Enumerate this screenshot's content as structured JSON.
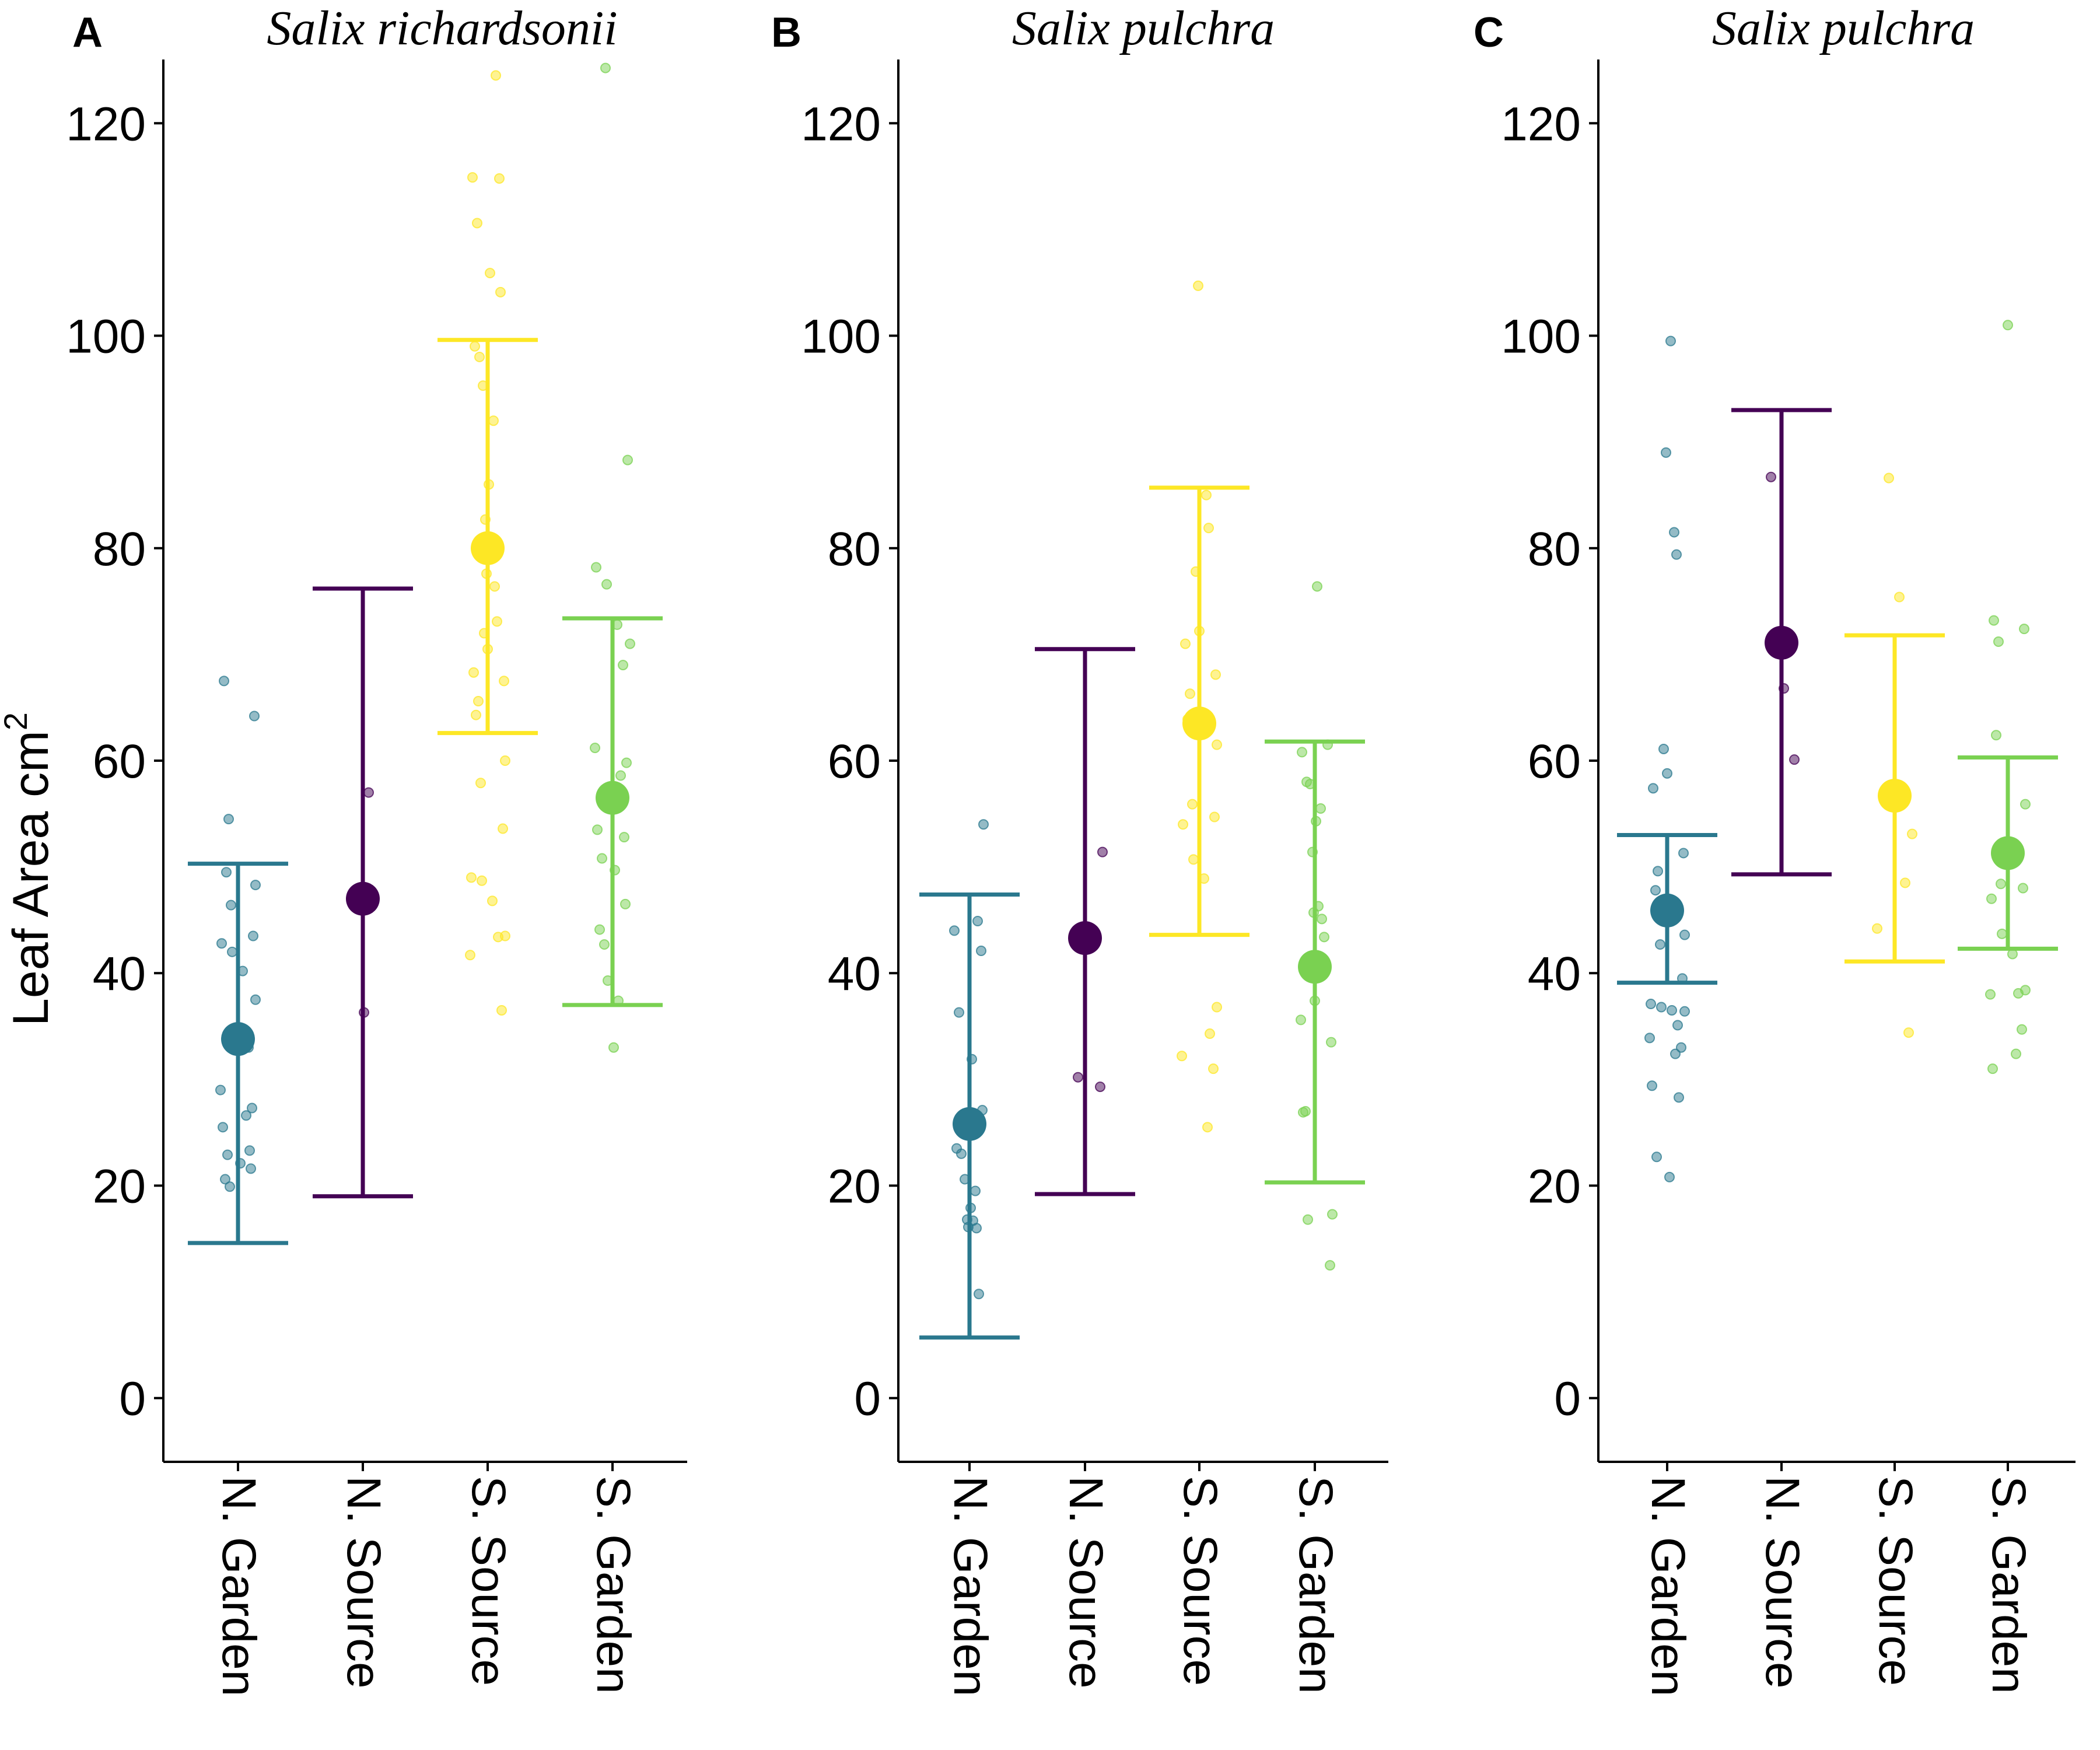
{
  "figure": {
    "y_axis_title": "Leaf Area cm",
    "y_axis_title_superscript": "2"
  },
  "chart_data": [
    {
      "type": "scatter",
      "panel_letter": "A",
      "title": "Salix richardsonii",
      "ylabel": "Leaf Area cm2",
      "ylim": [
        -6,
        126
      ],
      "yticks": [
        "0",
        "20",
        "40",
        "60",
        "80",
        "100",
        "120"
      ],
      "categories": [
        "N. Garden",
        "N. Source",
        "S. Source",
        "S. Garden"
      ],
      "colors": [
        "#2a788e",
        "#440154",
        "#fde725",
        "#7ad151"
      ],
      "means": [
        33.8,
        47.0,
        80.0,
        56.5
      ],
      "error_bars": [
        [
          14.6,
          50.3
        ],
        [
          19.0,
          76.2
        ],
        [
          62.6,
          99.6
        ],
        [
          37.0,
          73.4
        ]
      ],
      "points": [
        [
          67.5,
          64.2,
          54.5,
          49.5,
          48.3,
          46.4,
          43.5,
          42.8,
          42.0,
          40.2,
          37.5,
          33.0,
          29.0,
          27.3,
          26.6,
          25.5,
          23.3,
          22.9,
          22.1,
          21.6,
          20.6,
          19.9
        ],
        [
          57.0,
          36.3
        ],
        [
          124.5,
          114.9,
          114.8,
          110.6,
          105.9,
          104.1,
          99.0,
          98.0,
          95.3,
          92.0,
          86.0,
          82.7,
          79.0,
          77.6,
          76.4,
          73.1,
          72.0,
          70.5,
          68.3,
          67.5,
          65.6,
          64.3,
          60.0,
          57.9,
          53.6,
          49.0,
          48.7,
          46.8,
          43.5,
          43.4,
          41.7,
          36.5
        ],
        [
          125.2,
          88.3,
          78.2,
          76.6,
          72.8,
          71.0,
          69.0,
          61.2,
          59.8,
          58.6,
          53.5,
          52.8,
          50.8,
          49.7,
          46.5,
          44.1,
          42.7,
          39.3,
          37.4,
          33.0
        ]
      ]
    },
    {
      "type": "scatter",
      "panel_letter": "B",
      "title": "Salix pulchra",
      "ylabel": "",
      "ylim": [
        -6,
        126
      ],
      "yticks": [
        "0",
        "20",
        "40",
        "60",
        "80",
        "100",
        "120"
      ],
      "categories": [
        "N. Garden",
        "N. Source",
        "S. Source",
        "S. Garden"
      ],
      "colors": [
        "#2a788e",
        "#440154",
        "#fde725",
        "#7ad151"
      ],
      "means": [
        25.8,
        43.3,
        63.5,
        40.6
      ],
      "error_bars": [
        [
          5.7,
          47.4
        ],
        [
          19.2,
          70.5
        ],
        [
          43.6,
          85.7
        ],
        [
          20.3,
          61.8
        ]
      ],
      "points": [
        [
          54.0,
          44.9,
          44.0,
          42.1,
          36.3,
          31.9,
          27.1,
          23.5,
          23.0,
          20.6,
          19.5,
          17.9,
          16.8,
          16.7,
          16.1,
          16.0,
          9.8
        ],
        [
          51.4,
          30.2,
          29.3
        ],
        [
          104.7,
          85.0,
          81.9,
          77.8,
          72.2,
          71.0,
          68.1,
          66.3,
          63.9,
          61.5,
          55.9,
          54.7,
          54.0,
          50.7,
          48.9,
          36.8,
          34.3,
          32.2,
          31.0,
          25.5
        ],
        [
          76.4,
          61.5,
          60.8,
          58.0,
          57.8,
          55.5,
          54.3,
          51.4,
          46.3,
          45.7,
          45.1,
          43.4,
          39.7,
          37.4,
          35.6,
          33.5,
          27.0,
          26.9,
          17.3,
          16.8,
          12.5
        ]
      ]
    },
    {
      "type": "scatter",
      "panel_letter": "C",
      "title": "Salix pulchra",
      "ylabel": "",
      "ylim": [
        -6,
        126
      ],
      "yticks": [
        "0",
        "20",
        "40",
        "60",
        "80",
        "100",
        "120"
      ],
      "categories": [
        "N. Garden",
        "N. Source",
        "S. Source",
        "S. Garden"
      ],
      "colors": [
        "#2a788e",
        "#440154",
        "#fde725",
        "#7ad151"
      ],
      "means": [
        45.9,
        71.1,
        56.7,
        51.3
      ],
      "error_bars": [
        [
          39.1,
          53.0
        ],
        [
          49.3,
          93.0
        ],
        [
          41.1,
          71.8
        ],
        [
          42.3,
          60.3
        ]
      ],
      "points": [
        [
          99.5,
          89.0,
          81.5,
          79.4,
          61.1,
          58.8,
          57.4,
          51.3,
          49.6,
          47.8,
          43.6,
          42.7,
          39.5,
          37.1,
          36.8,
          36.5,
          36.4,
          35.1,
          33.9,
          33.0,
          32.4,
          29.4,
          28.3,
          22.7,
          20.8
        ],
        [
          86.7,
          66.8,
          60.1
        ],
        [
          86.6,
          75.4,
          53.1,
          48.5,
          44.2,
          34.4
        ],
        [
          101.0,
          73.2,
          72.4,
          71.2,
          62.4,
          55.9,
          48.4,
          48.0,
          47.0,
          43.7,
          41.8,
          38.4,
          38.1,
          38.0,
          34.7,
          32.4,
          31.0
        ]
      ]
    }
  ]
}
